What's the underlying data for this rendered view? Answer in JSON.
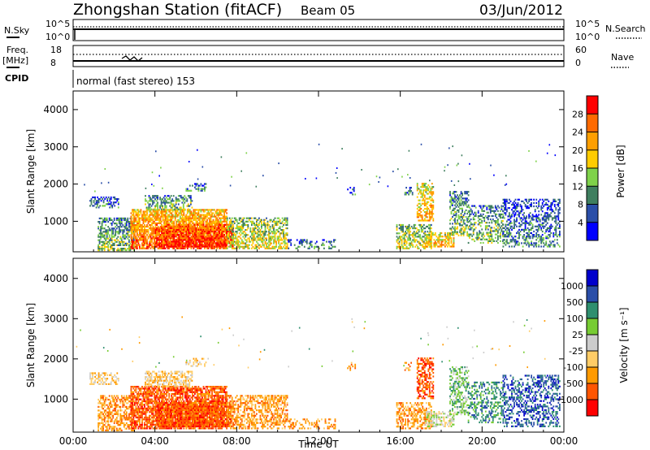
{
  "header": {
    "station": "Zhongshan Station (fitACF)",
    "beam": "Beam 05",
    "date": "03/Jun/2012"
  },
  "strip1": {
    "left_label": "N.Sky",
    "right_label": "N.Search",
    "left_ticks": [
      "10^5",
      "10^0"
    ],
    "right_ticks": [
      "10^5",
      "10^0"
    ]
  },
  "strip2": {
    "left_label_top": "Freq.",
    "left_label_bottom": "[MHz]",
    "right_label": "Nave",
    "left_ticks": [
      "18",
      "8"
    ],
    "right_ticks": [
      "60",
      "0"
    ]
  },
  "cpid": {
    "label": "CPID",
    "mode": "normal (fast stereo) 153"
  },
  "colors": {
    "power_scale": [
      "#0000ff",
      "#2a4ea8",
      "#3f7f5f",
      "#7fd24a",
      "#ffcc00",
      "#ff9f00",
      "#ff6a00",
      "#ff0000"
    ],
    "velocity_scale": [
      "#ff0000",
      "#ff5500",
      "#ff9a00",
      "#ffcc66",
      "#cccccc",
      "#77cc33",
      "#2f8f6f",
      "#2a4ea8",
      "#0000cc"
    ]
  },
  "chart_data": [
    {
      "type": "heatmap",
      "panel": "power",
      "ylabel": "Slant Range [km]",
      "y_ticks": [
        "1000",
        "2000",
        "3000",
        "4000"
      ],
      "x_ticks": [
        "00:00",
        "04:00",
        "08:00",
        "12:00",
        "16:00",
        "20:00",
        "00:00"
      ],
      "xlabel": "",
      "colorbar_label": "Power [dB]",
      "colorbar_ticks": [
        "4",
        "8",
        "12",
        "16",
        "20",
        "24",
        "28"
      ],
      "ylim": [
        180,
        4500
      ],
      "xlim_hours": [
        0,
        24
      ]
    },
    {
      "type": "heatmap",
      "panel": "velocity",
      "ylabel": "Slant Range [km]",
      "y_ticks": [
        "1000",
        "2000",
        "3000",
        "4000"
      ],
      "x_ticks": [
        "00:00",
        "04:00",
        "08:00",
        "12:00",
        "16:00",
        "20:00",
        "00:00"
      ],
      "xlabel": "Time UT",
      "colorbar_label": "Velocity [m s⁻¹]",
      "colorbar_ticks": [
        "1000",
        "500",
        "100",
        "25",
        "-25",
        "-100",
        "-500",
        "-1000"
      ],
      "ylim": [
        180,
        4500
      ],
      "xlim_hours": [
        0,
        24
      ]
    }
  ]
}
